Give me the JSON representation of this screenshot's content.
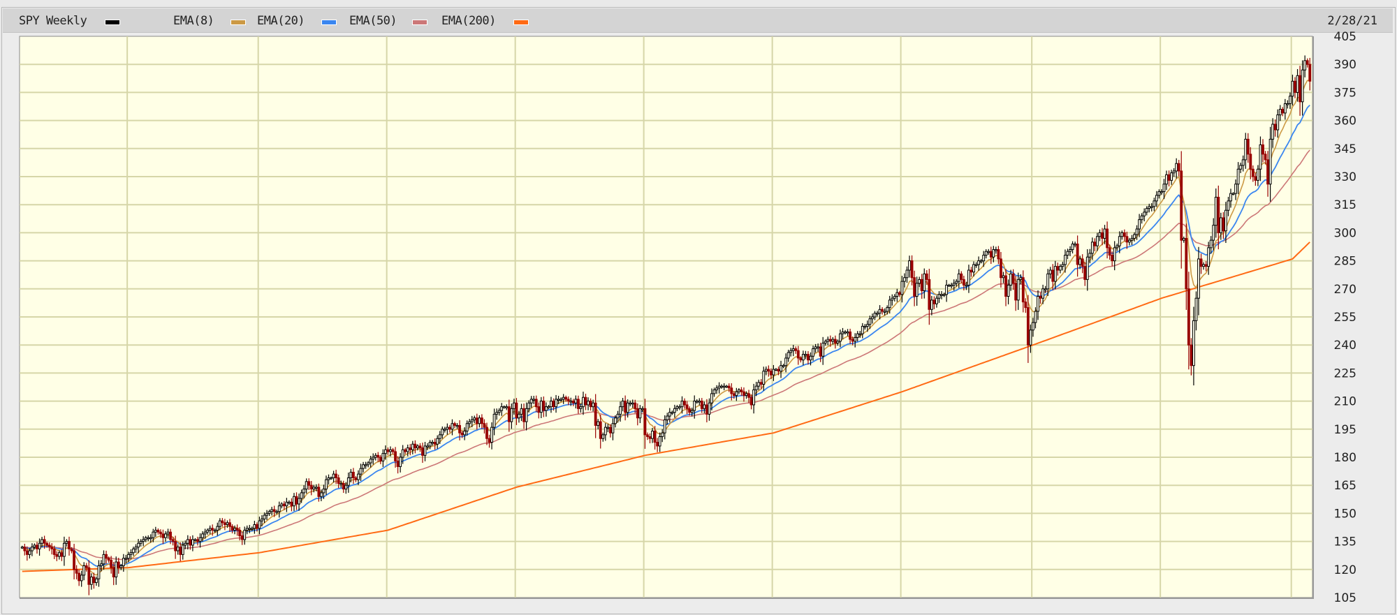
{
  "legend": {
    "symbol": "SPY Weekly",
    "items": [
      {
        "label": "EMA(8)",
        "color": "#cc9944"
      },
      {
        "label": "EMA(20)",
        "color": "#3a86f0"
      },
      {
        "label": "EMA(50)",
        "color": "#cc7777"
      },
      {
        "label": "EMA(200)",
        "color": "#ff6a14"
      }
    ],
    "price_color": "#000000"
  },
  "date_label": "2/28/21",
  "chart_data": {
    "type": "candlestick",
    "title": "SPY Weekly",
    "ylim": [
      105,
      405
    ],
    "yticks": [
      105,
      120,
      135,
      150,
      165,
      180,
      195,
      210,
      225,
      240,
      255,
      270,
      285,
      300,
      315,
      330,
      345,
      360,
      375,
      390,
      405
    ],
    "grid": true,
    "y_scale": "linear",
    "legend_position": "top",
    "colors": {
      "up_candle": "hollow-black",
      "down_candle": "#990000",
      "plot_bg": "#ffffe6",
      "grid": "#d6d6a8"
    },
    "weekly_closes_by_year": {
      "2011": [
        132,
        130,
        128,
        130,
        132,
        133,
        131,
        134,
        136,
        134,
        133,
        132,
        131,
        128,
        127,
        129,
        127,
        134,
        135,
        131,
        130,
        120,
        118,
        114,
        117,
        122,
        121,
        112,
        116,
        113,
        115,
        122,
        123,
        128,
        126,
        125,
        121,
        116,
        124,
        121,
        122,
        126,
        126
      ],
      "2012": [
        128,
        129,
        131,
        132,
        134,
        135,
        136,
        137,
        137,
        137,
        140,
        141,
        140,
        139,
        137,
        139,
        140,
        136,
        135,
        130,
        132,
        128,
        133,
        134,
        136,
        133,
        136,
        136,
        135,
        137,
        139,
        140,
        141,
        142,
        141,
        141,
        143,
        146,
        145,
        144,
        145,
        143,
        141,
        142,
        141,
        138,
        136,
        141,
        142,
        142,
        142,
        144,
        142
      ],
      "2013": [
        146,
        147,
        149,
        150,
        151,
        152,
        151,
        151,
        154,
        155,
        154,
        156,
        156,
        154,
        159,
        155,
        158,
        161,
        163,
        167,
        165,
        163,
        164,
        164,
        159,
        161,
        163,
        168,
        169,
        169,
        171,
        169,
        166,
        166,
        163,
        165,
        169,
        172,
        169,
        168,
        171,
        174,
        176,
        176,
        177,
        179,
        180,
        181,
        180,
        178,
        182,
        184
      ],
      "2014": [
        183,
        184,
        183,
        178,
        175,
        180,
        184,
        183,
        185,
        184,
        187,
        185,
        186,
        185,
        181,
        186,
        186,
        188,
        188,
        187,
        190,
        192,
        195,
        195,
        196,
        195,
        198,
        197,
        197,
        193,
        192,
        194,
        198,
        199,
        200,
        201,
        198,
        201,
        198,
        196,
        190,
        188,
        196,
        203,
        204,
        205,
        207,
        207,
        207,
        199,
        206,
        209
      ],
      "2015": [
        201,
        203,
        206,
        199,
        206,
        209,
        211,
        211,
        207,
        204,
        210,
        205,
        207,
        207,
        210,
        207,
        211,
        211,
        211,
        212,
        211,
        210,
        210,
        209,
        211,
        206,
        207,
        212,
        208,
        210,
        207,
        209,
        197,
        199,
        190,
        192,
        196,
        196,
        193,
        198,
        201,
        203,
        207,
        210,
        204,
        209,
        209,
        209,
        206,
        201,
        206,
        206
      ],
      "2016": [
        192,
        191,
        190,
        194,
        188,
        186,
        191,
        193,
        200,
        202,
        204,
        204,
        206,
        207,
        207,
        210,
        208,
        206,
        204,
        205,
        210,
        210,
        210,
        206,
        208,
        203,
        209,
        214,
        216,
        217,
        218,
        218,
        218,
        218,
        217,
        214,
        213,
        215,
        216,
        215,
        213,
        214,
        212,
        208,
        216,
        218,
        220,
        219,
        226,
        227,
        226,
        224
      ],
      "2017": [
        227,
        227,
        226,
        229,
        229,
        233,
        236,
        237,
        238,
        237,
        233,
        232,
        235,
        235,
        232,
        234,
        238,
        239,
        239,
        234,
        241,
        242,
        243,
        242,
        243,
        241,
        242,
        246,
        247,
        247,
        247,
        243,
        242,
        244,
        246,
        246,
        250,
        250,
        251,
        254,
        255,
        257,
        257,
        259,
        258,
        258,
        260,
        264,
        265,
        266,
        268,
        267
      ],
      "2018": [
        274,
        276,
        280,
        285,
        276,
        266,
        273,
        275,
        269,
        278,
        275,
        259,
        264,
        262,
        265,
        267,
        267,
        267,
        272,
        272,
        272,
        273,
        274,
        278,
        275,
        272,
        272,
        280,
        279,
        283,
        283,
        285,
        285,
        288,
        290,
        290,
        287,
        291,
        291,
        286,
        276,
        277,
        266,
        272,
        278,
        273,
        264,
        275,
        276,
        263,
        260,
        240,
        248
      ],
      "2019": [
        252,
        258,
        266,
        265,
        270,
        270,
        278,
        280,
        274,
        282,
        280,
        282,
        283,
        288,
        290,
        291,
        294,
        294,
        283,
        286,
        282,
        275,
        287,
        289,
        295,
        293,
        298,
        300,
        297,
        302,
        292,
        288,
        285,
        292,
        293,
        298,
        300,
        298,
        295,
        296,
        297,
        299,
        302,
        307,
        309,
        311,
        313,
        314,
        314,
        317,
        320,
        322
      ],
      "2020": [
        322,
        326,
        331,
        328,
        332,
        333,
        337,
        333,
        296,
        297,
        270,
        240,
        229,
        253,
        265,
        286,
        282,
        283,
        282,
        292,
        296,
        304,
        319,
        300,
        308,
        301,
        312,
        317,
        321,
        321,
        326,
        334,
        336,
        339,
        350,
        342,
        334,
        330,
        328,
        334,
        347,
        342,
        339,
        326,
        350,
        358,
        355,
        363,
        366,
        364,
        369,
        369,
        373
      ],
      "2021": [
        381,
        375,
        384,
        370,
        387,
        392,
        390,
        381
      ]
    },
    "ema200_by_year_start": {
      "2011": 119,
      "2012": 121,
      "2013": 129,
      "2014": 141,
      "2015": 164,
      "2016": 181,
      "2017": 193,
      "2018": 215,
      "2019": 240,
      "2020": 265,
      "2021": 286,
      "2021-end": 295
    }
  }
}
